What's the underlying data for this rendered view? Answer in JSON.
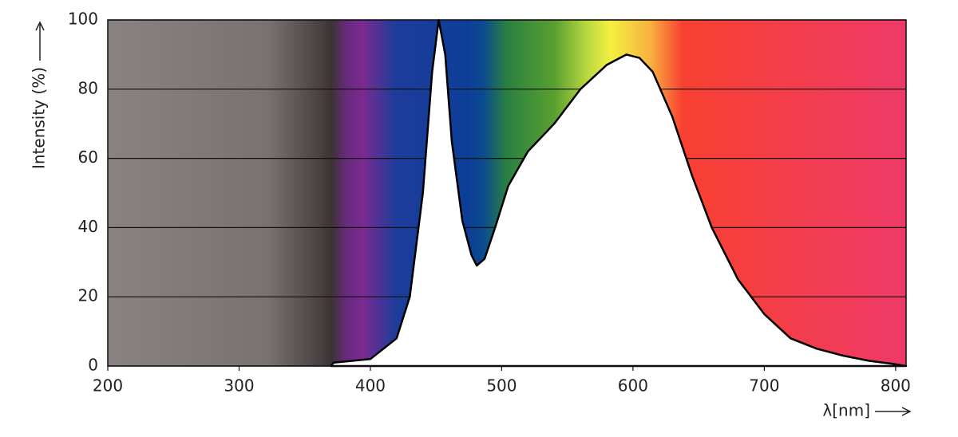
{
  "chart_data": {
    "type": "area",
    "xlabel": "λ[nm]",
    "ylabel": "Intensity (%)",
    "x": [
      370,
      372,
      400,
      420,
      430,
      440,
      447,
      452,
      457,
      462,
      470,
      477,
      481,
      487,
      495,
      505,
      520,
      540,
      560,
      580,
      595,
      605,
      615,
      630,
      645,
      660,
      680,
      700,
      720,
      740,
      760,
      780,
      800,
      808
    ],
    "values": [
      0,
      1,
      2,
      8,
      20,
      50,
      85,
      100,
      90,
      65,
      42,
      32,
      29,
      31,
      40,
      52,
      62,
      70,
      80,
      87,
      90,
      89,
      85,
      72,
      55,
      40,
      25,
      15,
      8,
      5,
      3,
      1.5,
      0.5,
      0
    ],
    "color": "#000000",
    "xlim": [
      200,
      808
    ],
    "ylim": [
      0,
      100
    ],
    "xticks": [
      200,
      300,
      400,
      500,
      600,
      700,
      800
    ],
    "yticks": [
      0,
      20,
      40,
      60,
      80,
      100
    ],
    "grid": true
  }
}
